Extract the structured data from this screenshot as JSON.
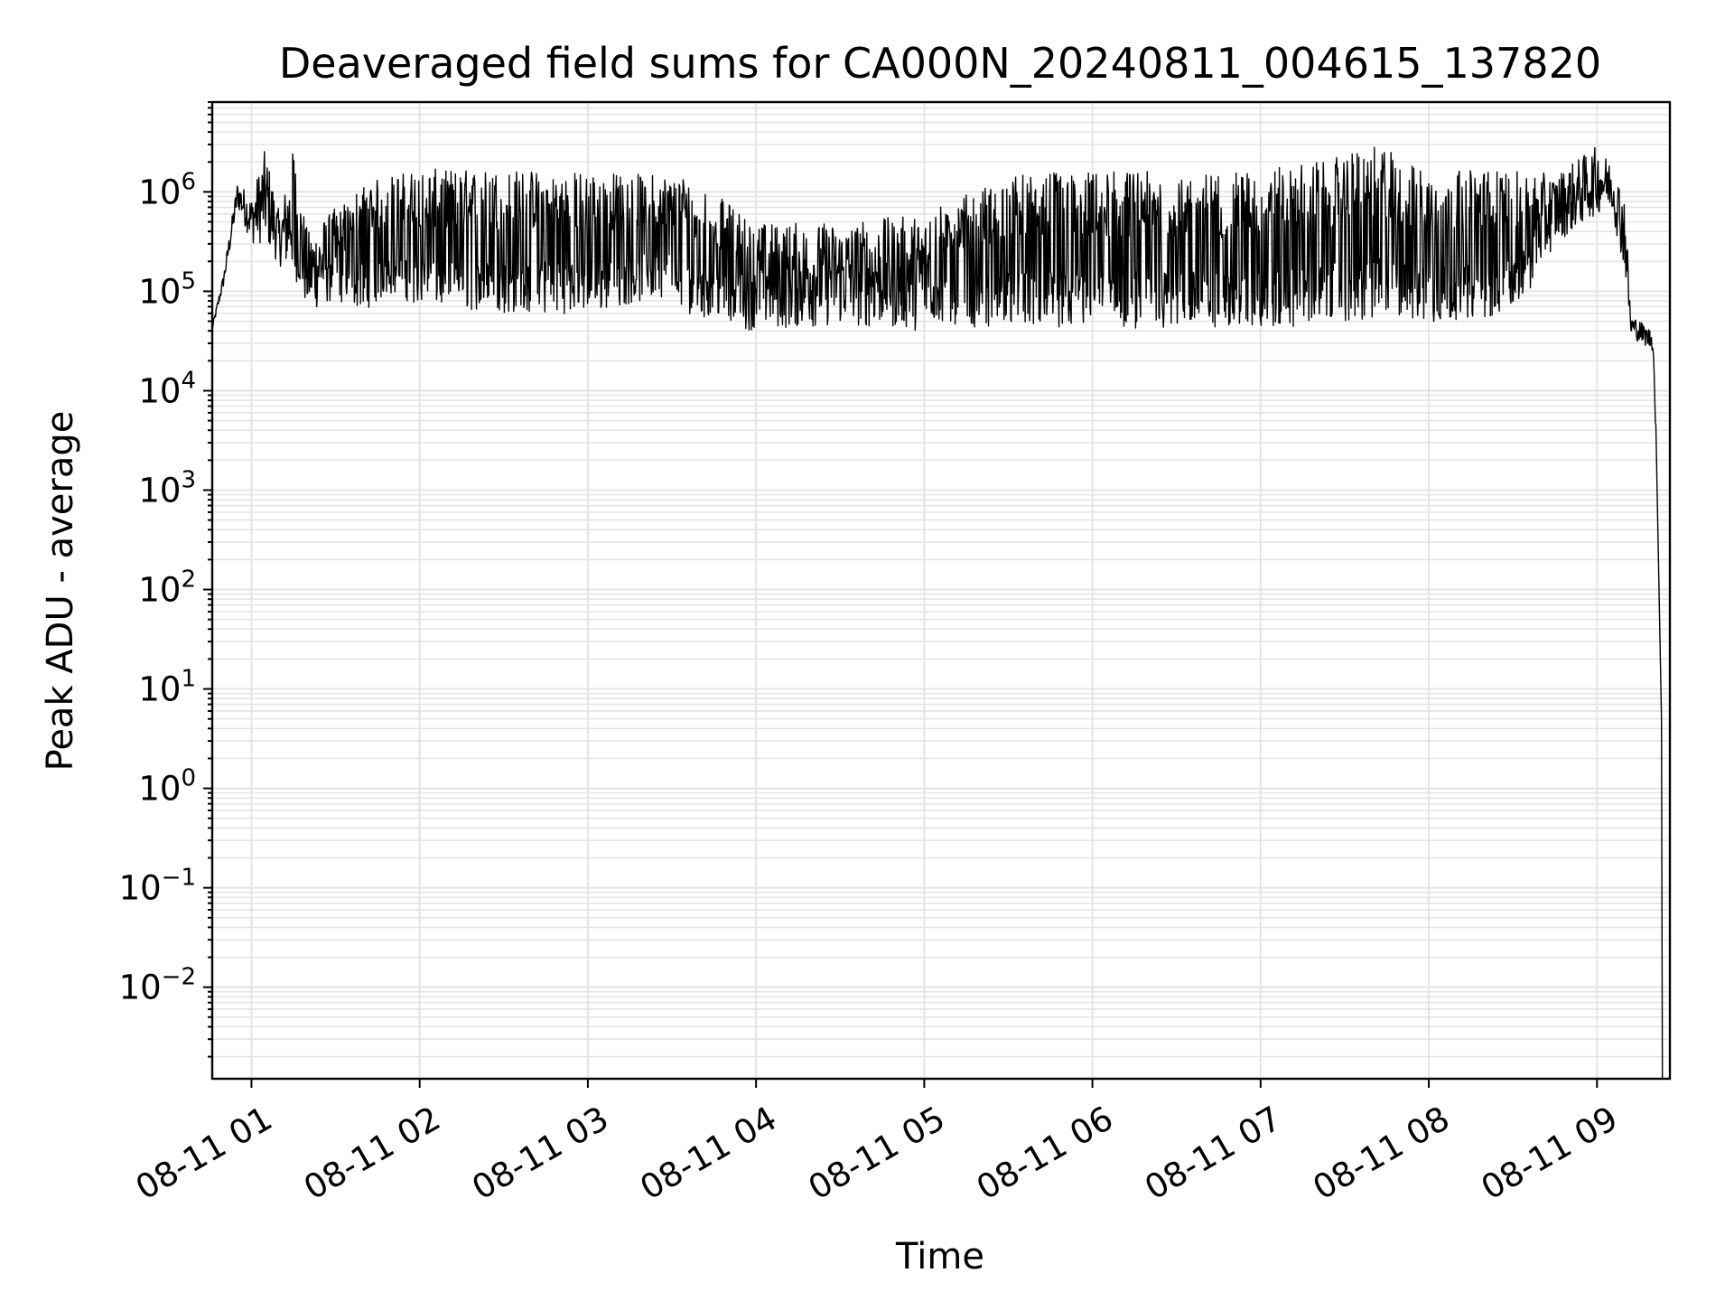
{
  "chart_data": {
    "type": "line",
    "title": "Deaveraged field sums for CA000N_20240811_004615_137820",
    "xlabel": "Time",
    "ylabel": "Peak ADU - average",
    "yscale": "log",
    "grid": true,
    "x_ticks": [
      "08-11 01",
      "08-11 02",
      "08-11 03",
      "08-11 04",
      "08-11 05",
      "08-11 06",
      "08-11 07",
      "08-11 08",
      "08-11 09"
    ],
    "x_range": [
      "2024-08-11 00:46",
      "2024-08-11 09:26"
    ],
    "y_ticks": [
      {
        "base": "10",
        "exp": "6",
        "value": 1000000
      },
      {
        "base": "10",
        "exp": "5",
        "value": 100000
      },
      {
        "base": "10",
        "exp": "4",
        "value": 10000
      },
      {
        "base": "10",
        "exp": "3",
        "value": 1000
      },
      {
        "base": "10",
        "exp": "2",
        "value": 100
      },
      {
        "base": "10",
        "exp": "1",
        "value": 10
      },
      {
        "base": "10",
        "exp": "0",
        "value": 1
      },
      {
        "base": "10",
        "exp": "−1",
        "value": 0.1
      },
      {
        "base": "10",
        "exp": "−2",
        "value": 0.01
      }
    ],
    "ylim": [
      0.0012,
      8000000
    ],
    "series": [
      {
        "color": "#000000",
        "envelope": [
          {
            "time": "2024-08-11 00:46",
            "low": 40000,
            "high": 45000
          },
          {
            "time": "2024-08-11 00:50",
            "low": 110000,
            "high": 150000
          },
          {
            "time": "2024-08-11 00:55",
            "low": 700000,
            "high": 1300000
          },
          {
            "time": "2024-08-11 01:00",
            "low": 300000,
            "high": 900000
          },
          {
            "time": "2024-08-11 01:05",
            "low": 300000,
            "high": 2800000
          },
          {
            "time": "2024-08-11 01:10",
            "low": 180000,
            "high": 600000
          },
          {
            "time": "2024-08-11 01:15",
            "low": 150000,
            "high": 2700000
          },
          {
            "time": "2024-08-11 01:20",
            "low": 60000,
            "high": 400000
          },
          {
            "time": "2024-08-11 01:30",
            "low": 80000,
            "high": 700000
          },
          {
            "time": "2024-08-11 01:40",
            "low": 55000,
            "high": 1200000
          },
          {
            "time": "2024-08-11 01:50",
            "low": 80000,
            "high": 1500000
          },
          {
            "time": "2024-08-11 02:00",
            "low": 60000,
            "high": 1700000
          },
          {
            "time": "2024-08-11 02:30",
            "low": 50000,
            "high": 1700000
          },
          {
            "time": "2024-08-11 03:00",
            "low": 50000,
            "high": 1600000
          },
          {
            "time": "2024-08-11 03:30",
            "low": 80000,
            "high": 1500000
          },
          {
            "time": "2024-08-11 03:35",
            "low": 50000,
            "high": 1500000
          },
          {
            "time": "2024-08-11 04:00",
            "low": 40000,
            "high": 500000
          },
          {
            "time": "2024-08-11 04:30",
            "low": 45000,
            "high": 500000
          },
          {
            "time": "2024-08-11 05:00",
            "low": 40000,
            "high": 600000
          },
          {
            "time": "2024-08-11 05:30",
            "low": 35000,
            "high": 1500000
          },
          {
            "time": "2024-08-11 06:00",
            "low": 35000,
            "high": 1600000
          },
          {
            "time": "2024-08-11 06:30",
            "low": 35000,
            "high": 1600000
          },
          {
            "time": "2024-08-11 07:00",
            "low": 35000,
            "high": 1600000
          },
          {
            "time": "2024-08-11 07:45",
            "low": 40000,
            "high": 3000000
          },
          {
            "time": "2024-08-11 08:00",
            "low": 40000,
            "high": 1600000
          },
          {
            "time": "2024-08-11 08:30",
            "low": 50000,
            "high": 1700000
          },
          {
            "time": "2024-08-11 08:45",
            "low": 300000,
            "high": 1500000
          },
          {
            "time": "2024-08-11 09:00",
            "low": 600000,
            "high": 2900000
          },
          {
            "time": "2024-08-11 09:05",
            "low": 700000,
            "high": 2000000
          },
          {
            "time": "2024-08-11 09:10",
            "low": 150000,
            "high": 1000000
          },
          {
            "time": "2024-08-11 09:12",
            "low": 35000,
            "high": 60000
          },
          {
            "time": "2024-08-11 09:20",
            "low": 25000,
            "high": 40000
          },
          {
            "time": "2024-08-11 09:21",
            "low": 3000,
            "high": 5000
          },
          {
            "time": "2024-08-11 09:23",
            "low": 0.0012,
            "high": 10
          }
        ]
      }
    ]
  }
}
